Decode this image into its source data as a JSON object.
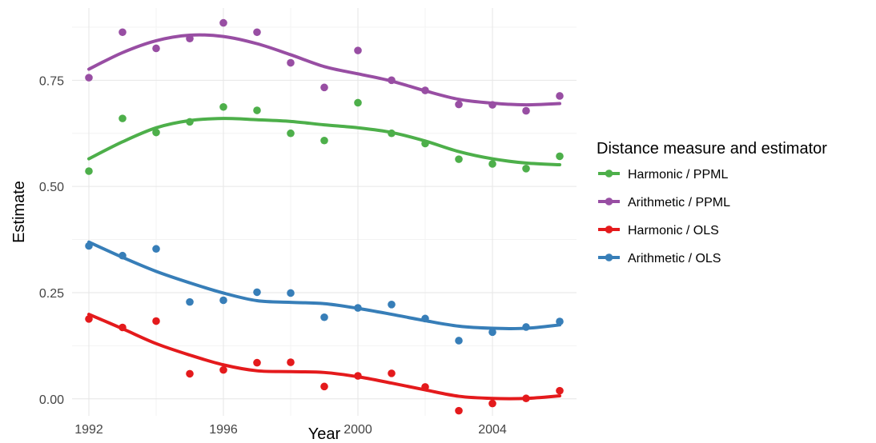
{
  "chart_data": {
    "type": "scatter",
    "title": "",
    "xlabel": "Year",
    "ylabel": "Estimate",
    "xlim": [
      1991.5,
      2006.5
    ],
    "ylim": [
      -0.04,
      0.92
    ],
    "xticks": [
      1992,
      1996,
      2000,
      2004
    ],
    "yticks": [
      0.0,
      0.25,
      0.5,
      0.75
    ],
    "ytick_labels": [
      "0.00",
      "0.25",
      "0.50",
      "0.75"
    ],
    "grid": true,
    "legend": {
      "title": "Distance measure and estimator",
      "position": "right"
    },
    "series": [
      {
        "name": "Harmonic / PPML",
        "color": "#4DAF4A",
        "points": [
          [
            1992,
            0.536
          ],
          [
            1993,
            0.66
          ],
          [
            1994,
            0.627
          ],
          [
            1995,
            0.652
          ],
          [
            1996,
            0.687
          ],
          [
            1997,
            0.679
          ],
          [
            1998,
            0.625
          ],
          [
            1999,
            0.608
          ],
          [
            2000,
            0.697
          ],
          [
            2001,
            0.625
          ],
          [
            2002,
            0.601
          ],
          [
            2003,
            0.564
          ],
          [
            2004,
            0.553
          ],
          [
            2005,
            0.542
          ],
          [
            2006,
            0.571
          ]
        ],
        "smooth": [
          [
            1992,
            0.565
          ],
          [
            1993,
            0.605
          ],
          [
            1994,
            0.638
          ],
          [
            1995,
            0.655
          ],
          [
            1996,
            0.66
          ],
          [
            1997,
            0.657
          ],
          [
            1998,
            0.653
          ],
          [
            1999,
            0.645
          ],
          [
            2000,
            0.638
          ],
          [
            2001,
            0.627
          ],
          [
            2002,
            0.607
          ],
          [
            2003,
            0.582
          ],
          [
            2004,
            0.565
          ],
          [
            2005,
            0.555
          ],
          [
            2006,
            0.551
          ]
        ]
      },
      {
        "name": "Arithmetic / PPML",
        "color": "#984EA3",
        "points": [
          [
            1992,
            0.756
          ],
          [
            1993,
            0.863
          ],
          [
            1994,
            0.825
          ],
          [
            1995,
            0.848
          ],
          [
            1996,
            0.885
          ],
          [
            1997,
            0.863
          ],
          [
            1998,
            0.791
          ],
          [
            1999,
            0.733
          ],
          [
            2000,
            0.82
          ],
          [
            2001,
            0.75
          ],
          [
            2002,
            0.726
          ],
          [
            2003,
            0.693
          ],
          [
            2004,
            0.692
          ],
          [
            2005,
            0.678
          ],
          [
            2006,
            0.713
          ]
        ],
        "smooth": [
          [
            1992,
            0.776
          ],
          [
            1993,
            0.815
          ],
          [
            1994,
            0.843
          ],
          [
            1995,
            0.856
          ],
          [
            1996,
            0.853
          ],
          [
            1997,
            0.836
          ],
          [
            1998,
            0.81
          ],
          [
            1999,
            0.782
          ],
          [
            2000,
            0.765
          ],
          [
            2001,
            0.748
          ],
          [
            2002,
            0.725
          ],
          [
            2003,
            0.705
          ],
          [
            2004,
            0.696
          ],
          [
            2005,
            0.692
          ],
          [
            2006,
            0.695
          ]
        ]
      },
      {
        "name": "Harmonic / OLS",
        "color": "#E41A1C",
        "points": [
          [
            1992,
            0.188
          ],
          [
            1993,
            0.168
          ],
          [
            1994,
            0.183
          ],
          [
            1995,
            0.059
          ],
          [
            1996,
            0.068
          ],
          [
            1997,
            0.085
          ],
          [
            1998,
            0.086
          ],
          [
            1999,
            0.029
          ],
          [
            2000,
            0.054
          ],
          [
            2001,
            0.06
          ],
          [
            2002,
            0.028
          ],
          [
            2003,
            -0.028
          ],
          [
            2004,
            -0.011
          ],
          [
            2005,
            0.001
          ],
          [
            2006,
            0.019
          ]
        ],
        "smooth": [
          [
            1992,
            0.199
          ],
          [
            1993,
            0.165
          ],
          [
            1994,
            0.13
          ],
          [
            1995,
            0.103
          ],
          [
            1996,
            0.08
          ],
          [
            1997,
            0.066
          ],
          [
            1998,
            0.064
          ],
          [
            1999,
            0.062
          ],
          [
            2000,
            0.052
          ],
          [
            2001,
            0.037
          ],
          [
            2002,
            0.021
          ],
          [
            2003,
            0.006
          ],
          [
            2004,
            0.001
          ],
          [
            2005,
            0.001
          ],
          [
            2006,
            0.007
          ]
        ]
      },
      {
        "name": "Arithmetic / OLS",
        "color": "#377EB8",
        "points": [
          [
            1992,
            0.36
          ],
          [
            1993,
            0.337
          ],
          [
            1994,
            0.353
          ],
          [
            1995,
            0.228
          ],
          [
            1996,
            0.232
          ],
          [
            1997,
            0.251
          ],
          [
            1998,
            0.249
          ],
          [
            1999,
            0.192
          ],
          [
            2000,
            0.214
          ],
          [
            2001,
            0.222
          ],
          [
            2002,
            0.189
          ],
          [
            2003,
            0.137
          ],
          [
            2004,
            0.157
          ],
          [
            2005,
            0.169
          ],
          [
            2006,
            0.182
          ]
        ],
        "smooth": [
          [
            1992,
            0.369
          ],
          [
            1993,
            0.333
          ],
          [
            1994,
            0.3
          ],
          [
            1995,
            0.273
          ],
          [
            1996,
            0.249
          ],
          [
            1997,
            0.231
          ],
          [
            1998,
            0.227
          ],
          [
            1999,
            0.224
          ],
          [
            2000,
            0.213
          ],
          [
            2001,
            0.199
          ],
          [
            2002,
            0.184
          ],
          [
            2003,
            0.171
          ],
          [
            2004,
            0.166
          ],
          [
            2005,
            0.166
          ],
          [
            2006,
            0.174
          ]
        ]
      }
    ],
    "legend_order": [
      "Harmonic / PPML",
      "Arithmetic / PPML",
      "Harmonic / OLS",
      "Arithmetic / OLS"
    ]
  }
}
